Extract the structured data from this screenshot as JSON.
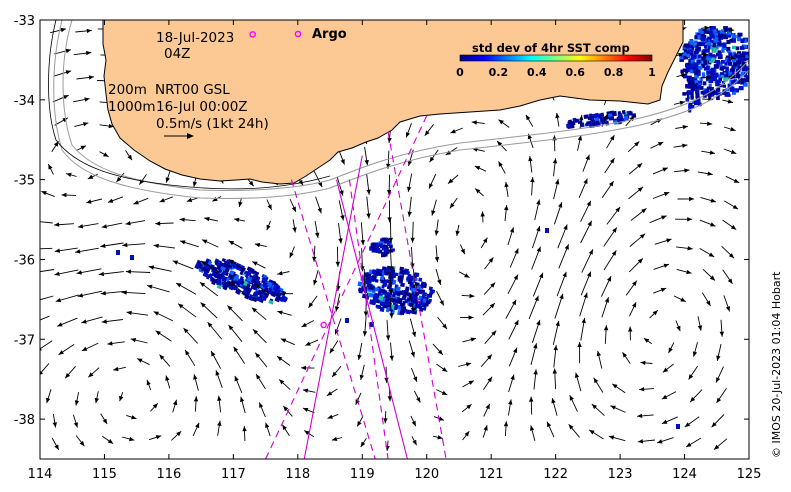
{
  "map": {
    "lon_range": [
      114,
      125
    ],
    "lat_range": [
      -38.5,
      -33
    ],
    "x_ticks": [
      114,
      115,
      116,
      117,
      118,
      119,
      120,
      121,
      122,
      123,
      124,
      125
    ],
    "y_ticks": [
      -33,
      -34,
      -35,
      -36,
      -37,
      -38
    ],
    "land_color": "#fcc994",
    "track_color": "#d000d0",
    "argo_marker_color": "#ff00ff"
  },
  "text": {
    "date": "18-Jul-2023",
    "hour": "04Z",
    "depth1": "200m",
    "product": "NRT00 GSL",
    "depth2": "1000m",
    "time": "16-Jul 00:00Z",
    "scale": "0.5m/s (1kt 24h)",
    "argo": "Argo",
    "credit": "© IMOS 20-Jul-2023 01:04 Hobart"
  },
  "legend": {
    "title": "std dev of 4hr SST comp",
    "ticks": [
      "0",
      "0.2",
      "0.4",
      "0.6",
      "0.8",
      "1"
    ],
    "colors": [
      "#00007f",
      "#0000ff",
      "#007fff",
      "#00ffff",
      "#7fff7f",
      "#ffff00",
      "#ff7f00",
      "#ff0000",
      "#7f0000"
    ]
  },
  "argo_floats": [
    {
      "lon": 117.3,
      "lat": -33.18
    },
    {
      "lon": 118.4,
      "lat": -36.82
    }
  ],
  "tracks": [
    {
      "style": "solid",
      "from": [
        118.6,
        -35.0
      ],
      "to": [
        119.7,
        -38.5
      ]
    },
    {
      "style": "solid",
      "from": [
        119.0,
        -34.7
      ],
      "to": [
        118.1,
        -38.5
      ]
    },
    {
      "style": "dashed",
      "from": [
        118.8,
        -35.0
      ],
      "to": [
        119.4,
        -38.5
      ]
    },
    {
      "style": "dashed",
      "from": [
        117.9,
        -35.0
      ],
      "to": [
        119.2,
        -38.5
      ]
    },
    {
      "style": "dashed",
      "from": [
        120.0,
        -34.2
      ],
      "to": [
        117.5,
        -38.5
      ]
    },
    {
      "style": "dashed",
      "from": [
        119.4,
        -34.4
      ],
      "to": [
        120.3,
        -38.5
      ]
    }
  ]
}
